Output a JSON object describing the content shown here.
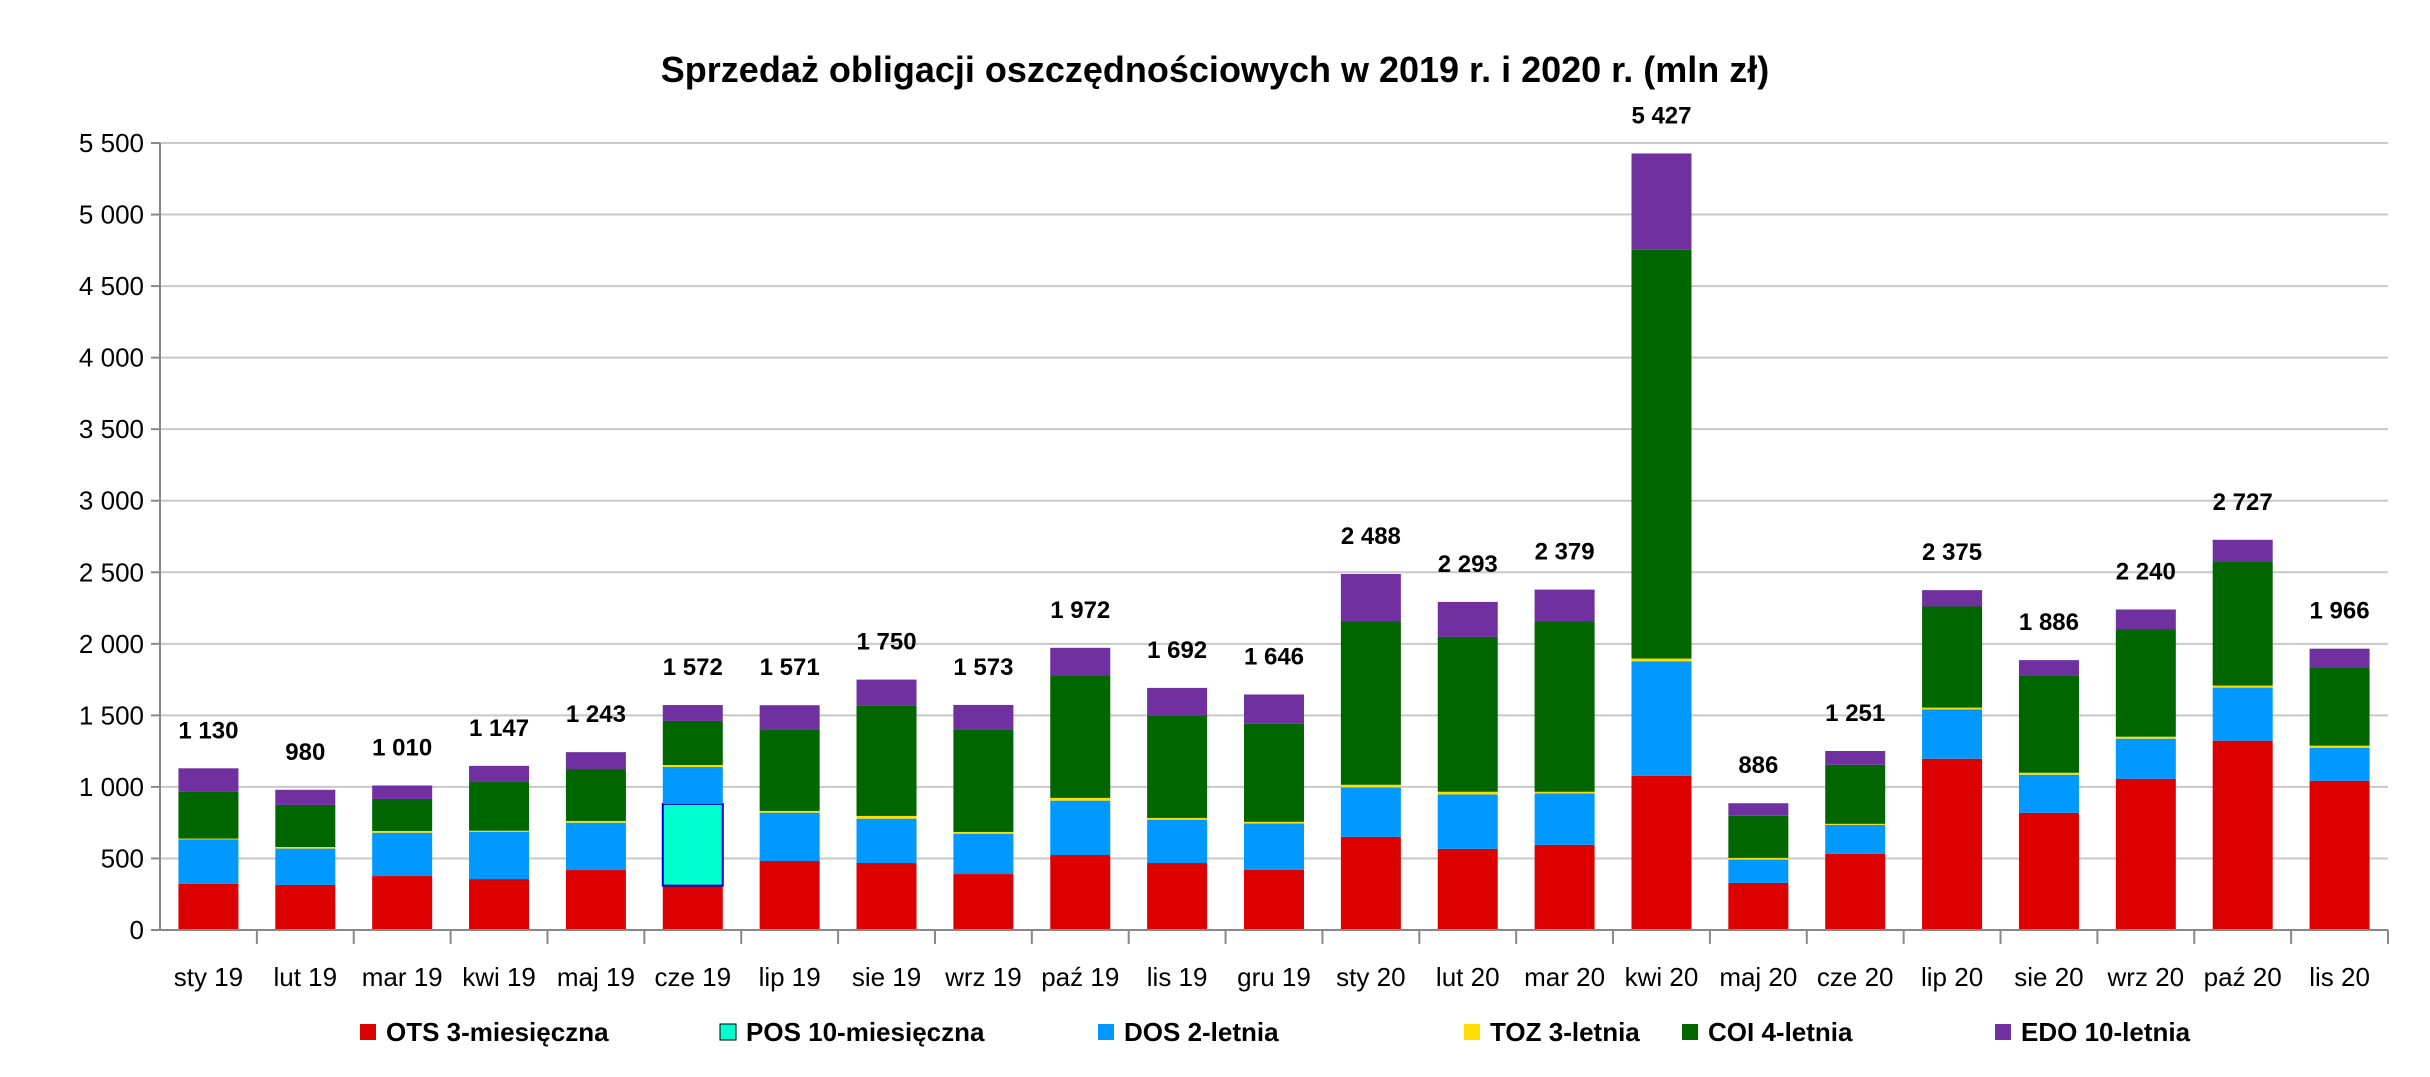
{
  "chart_data": {
    "type": "bar",
    "stacked": true,
    "title": "Sprzedaż obligacji oszczędnościowych w 2019 r. i 2020 r. (mln zł)",
    "xlabel": "",
    "ylabel": "",
    "ylim": [
      0,
      5500
    ],
    "yticks": [
      0,
      500,
      1000,
      1500,
      2000,
      2500,
      3000,
      3500,
      4000,
      4500,
      5000,
      5500
    ],
    "ytick_labels": [
      "0",
      "500",
      "1 000",
      "1 500",
      "2 000",
      "2 500",
      "3 000",
      "3 500",
      "4 000",
      "4 500",
      "5 000",
      "5 500"
    ],
    "grid": true,
    "legend_position": "bottom",
    "categories": [
      "sty 19",
      "lut 19",
      "mar 19",
      "kwi 19",
      "maj 19",
      "cze 19",
      "lip 19",
      "sie 19",
      "wrz 19",
      "paź 19",
      "lis 19",
      "gru 19",
      "sty 20",
      "lut 20",
      "mar 20",
      "kwi 20",
      "maj 20",
      "cze 20",
      "lip 20",
      "sie 20",
      "wrz 20",
      "paź 20",
      "lis 20"
    ],
    "totals": [
      "1 130",
      "980",
      "1 010",
      "1 147",
      "1 243",
      "1 572",
      "1 571",
      "1 750",
      "1 573",
      "1 972",
      "1 692",
      "1 646",
      "2 488",
      "2 293",
      "2 379",
      "5 427",
      "886",
      "1 251",
      "2 375",
      "1 886",
      "2 240",
      "2 727",
      "1 966"
    ],
    "series": [
      {
        "name": "OTS 3-miesięczna",
        "color": "#dd0000",
        "values": [
          322,
          315,
          377,
          356,
          419,
          310,
          482,
          468,
          391,
          524,
          468,
          420,
          651,
          567,
          595,
          1078,
          329,
          532,
          1197,
          819,
          1057,
          1323,
          1043
        ]
      },
      {
        "name": "POS 10-miesięczna",
        "color": "#00ffcc",
        "label_color": "#0000cc",
        "values": [
          0,
          0,
          0,
          0,
          0,
          571,
          0,
          0,
          0,
          0,
          0,
          0,
          0,
          0,
          0,
          0,
          0,
          0,
          0,
          0,
          0,
          0,
          0
        ]
      },
      {
        "name": "DOS 2-letnia",
        "color": "#0099ff",
        "values": [
          312,
          254,
          303,
          331,
          331,
          258,
          338,
          310,
          282,
          380,
          303,
          324,
          345,
          380,
          359,
          800,
          163,
          203,
          345,
          266,
          280,
          371,
          231
        ]
      },
      {
        "name": "TOZ 3-letnia",
        "color": "#ffdd00",
        "values": [
          5,
          11,
          12,
          7,
          12,
          14,
          12,
          19,
          12,
          19,
          12,
          12,
          19,
          19,
          12,
          19,
          12,
          7,
          12,
          14,
          14,
          14,
          14
        ]
      },
      {
        "name": "COI 4-letnia",
        "color": "#006600",
        "values": [
          326,
          294,
          224,
          340,
          363,
          308,
          566,
          769,
          713,
          852,
          717,
          686,
          1141,
          1082,
          1190,
          2857,
          294,
          413,
          707,
          679,
          749,
          868,
          546
        ]
      },
      {
        "name": "EDO 10-letnia",
        "color": "#7030a0",
        "values": [
          165,
          106,
          94,
          113,
          118,
          111,
          173,
          184,
          175,
          197,
          192,
          204,
          332,
          245,
          223,
          673,
          88,
          96,
          114,
          108,
          140,
          151,
          132
        ]
      }
    ]
  }
}
